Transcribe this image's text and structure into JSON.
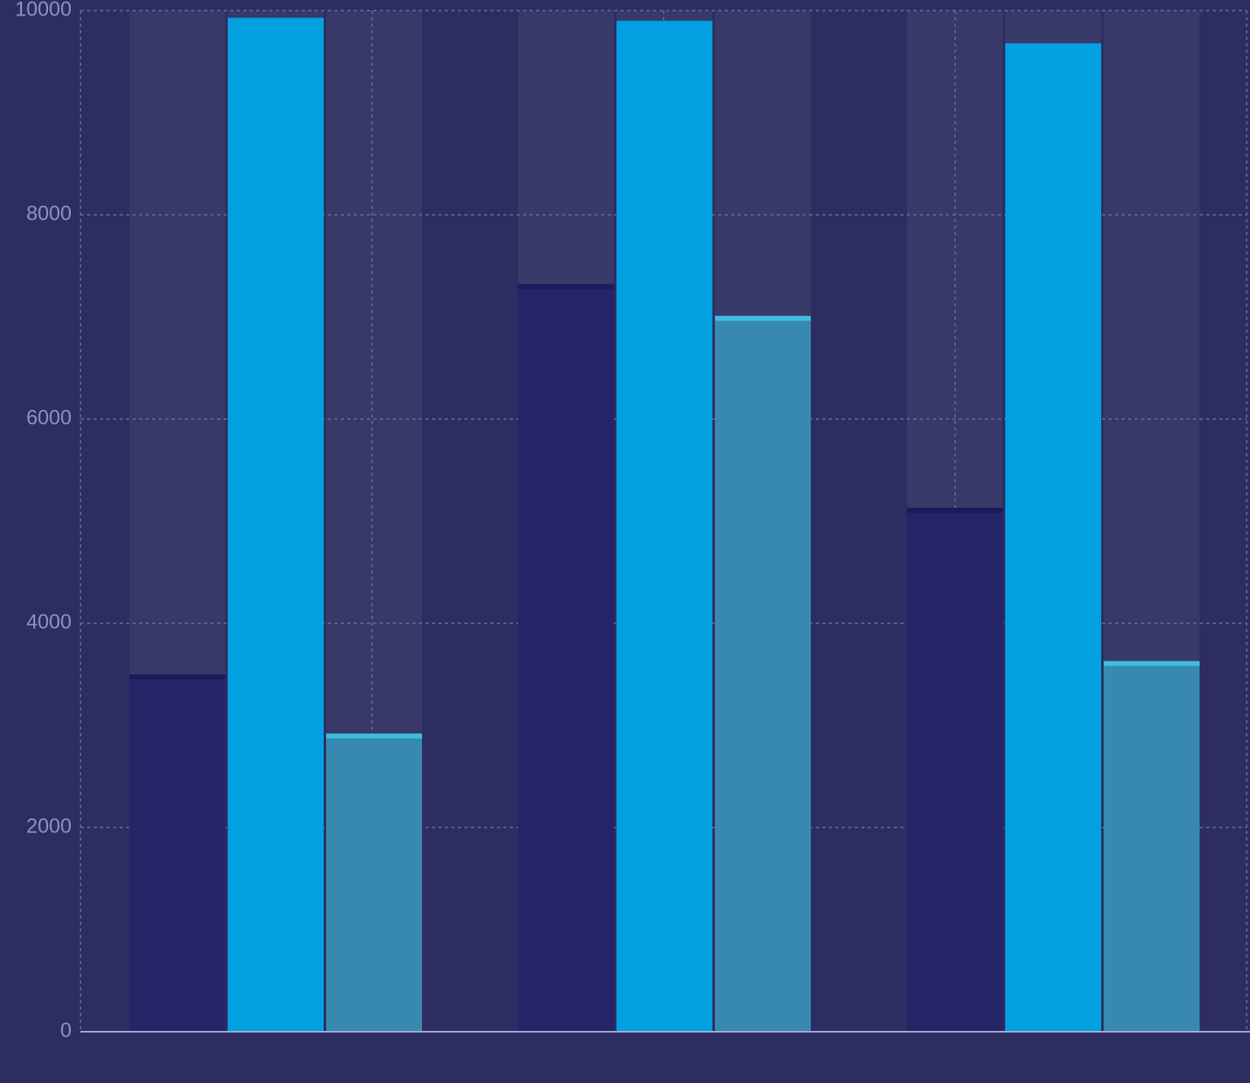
{
  "chart_data": {
    "type": "bar",
    "categories": [
      null,
      null,
      null
    ],
    "series": [
      {
        "color": "#232566",
        "values": [
          3500,
          7320,
          5130
        ]
      },
      {
        "color": "#02a0e0",
        "values": [
          9930,
          9900,
          9680
        ]
      },
      {
        "color": "#3889b0",
        "values": [
          2920,
          7010,
          3630
        ]
      }
    ],
    "ylim": [
      0,
      10000
    ],
    "yticks": [
      0,
      2000,
      4000,
      6000,
      8000,
      10000
    ],
    "grid": true
  }
}
